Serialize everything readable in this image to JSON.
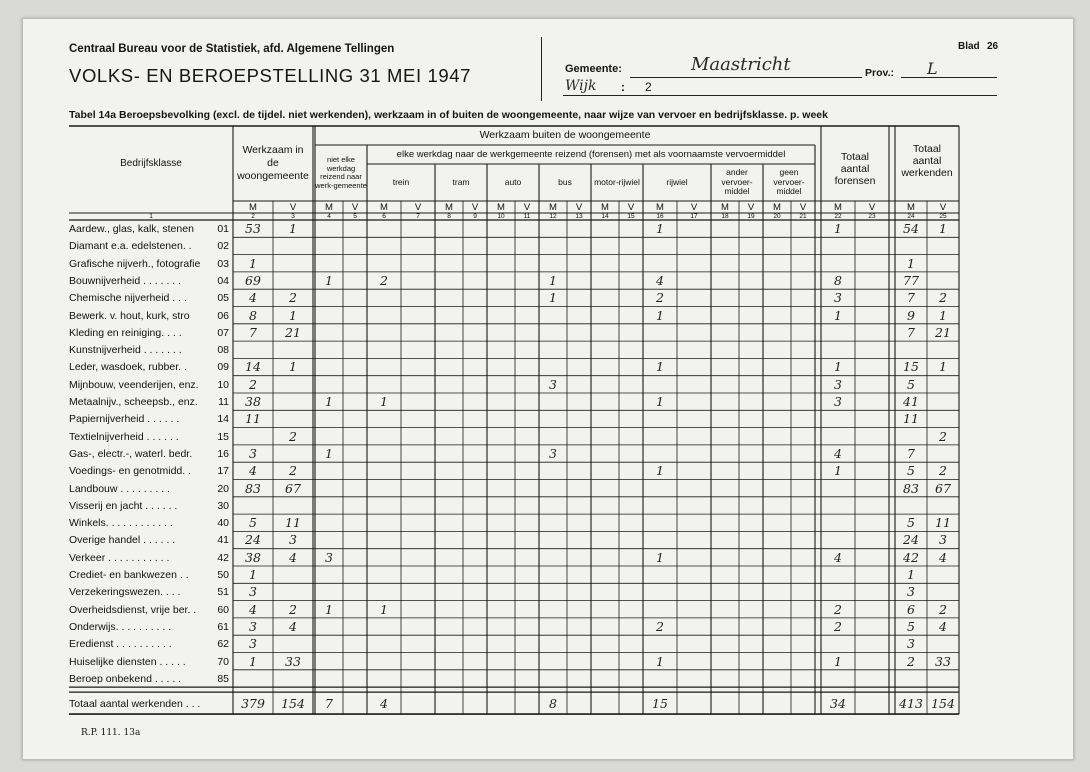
{
  "header": {
    "bureau": "Centraal Bureau voor de Statistiek, afd. Algemene Tellingen",
    "title": "VOLKS- EN BEROEPSTELLING 31 MEI 1947",
    "gemeente_label": "Gemeente:",
    "gemeente_value": "Maastricht",
    "wijk_label": "Wijk",
    "wijk_colon": ":",
    "wijk_value": "2",
    "prov_label": "Prov.:",
    "prov_value": "L",
    "blad_label": "Blad",
    "blad_value": "26"
  },
  "table_title": "Tabel 14a  Beroepsbevolking (excl. de tijdel. niet werkenden), werkzaam in of buiten de woongemeente, naar wijze van vervoer  en  bedrijfsklasse. p. week",
  "columns": {
    "bedrijfsklasse": "Bedrijfsklasse",
    "werkzaam_in": "Werkzaam in de woongemeente",
    "werkzaam_buiten": "Werkzaam buiten de woongemeente",
    "niet_elke": "niet elke werkdag reizend naar werk-gemeente",
    "elke_werkdag": "elke werkdag naar de werkgemeente reizend (forensen) met als voornaamste vervoermiddel",
    "modes": [
      "trein",
      "tram",
      "auto",
      "bus",
      "motor-rijwiel",
      "rijwiel",
      "ander vervoer-middel",
      "geen vervoer-middel"
    ],
    "totaal_forensen": "Totaal aantal forensen",
    "totaal_werkenden": "Totaal aantal werkenden",
    "m": "M",
    "v": "V",
    "numbers": [
      "1",
      "2",
      "3",
      "4",
      "5",
      "6",
      "7",
      "8",
      "9",
      "10",
      "11",
      "12",
      "13",
      "14",
      "15",
      "16",
      "17",
      "18",
      "19",
      "20",
      "21",
      "22",
      "23",
      "24",
      "25"
    ]
  },
  "rows": [
    {
      "label": "Aardew., glas, kalk, stenen",
      "code": "01",
      "values": {
        "2": "53",
        "3": "1",
        "16": "1",
        "22": "1",
        "24": "54",
        "25": "1"
      }
    },
    {
      "label": "Diamant e.a. edelstenen. .",
      "code": "02",
      "values": {}
    },
    {
      "label": "Grafische nijverh., fotografie",
      "code": "03",
      "values": {
        "2": "1",
        "24": "1"
      }
    },
    {
      "label": "Bouwnijverheid . . . . . . .",
      "code": "04",
      "values": {
        "2": "69",
        "4": "1",
        "6": "2",
        "12": "1",
        "16": "4",
        "22": "8",
        "24": "77"
      }
    },
    {
      "label": "Chemische nijverheid . . .",
      "code": "05",
      "values": {
        "2": "4",
        "3": "2",
        "12": "1",
        "16": "2",
        "22": "3",
        "24": "7",
        "25": "2"
      }
    },
    {
      "label": "Bewerk. v. hout, kurk, stro",
      "code": "06",
      "values": {
        "2": "8",
        "3": "1",
        "16": "1",
        "22": "1",
        "24": "9",
        "25": "1"
      }
    },
    {
      "label": "Kleding en reiniging. . . .",
      "code": "07",
      "values": {
        "2": "7",
        "3": "21",
        "24": "7",
        "25": "21"
      }
    },
    {
      "label": "Kunstnijverheid . . . . . . .",
      "code": "08",
      "values": {}
    },
    {
      "label": "Leder, wasdoek, rubber. .",
      "code": "09",
      "values": {
        "2": "14",
        "3": "1",
        "16": "1",
        "22": "1",
        "24": "15",
        "25": "1"
      }
    },
    {
      "label": "Mijnbouw, veenderijen, enz.",
      "code": "10",
      "values": {
        "2": "2",
        "12": "3",
        "22": "3",
        "24": "5"
      }
    },
    {
      "label": "Metaalnijv., scheepsb., enz.",
      "code": "11",
      "values": {
        "2": "38",
        "4": "1",
        "6": "1",
        "16": "1",
        "22": "3",
        "24": "41"
      }
    },
    {
      "label": "Papiernijverheid . . . . . .",
      "code": "14",
      "values": {
        "2": "11",
        "24": "11"
      }
    },
    {
      "label": "Textielnijverheid . . . . . .",
      "code": "15",
      "values": {
        "3": "2",
        "25": "2"
      }
    },
    {
      "label": "Gas-, electr.-, waterl. bedr.",
      "code": "16",
      "values": {
        "2": "3",
        "4": "1",
        "12": "3",
        "22": "4",
        "24": "7"
      }
    },
    {
      "label": "Voedings- en genotmidd. .",
      "code": "17",
      "values": {
        "2": "4",
        "3": "2",
        "16": "1",
        "22": "1",
        "24": "5",
        "25": "2"
      }
    },
    {
      "label": "Landbouw . . . . . . . . .",
      "code": "20",
      "values": {
        "2": "83",
        "3": "67",
        "24": "83",
        "25": "67"
      }
    },
    {
      "label": "Visserij en jacht . . . . . .",
      "code": "30",
      "values": {}
    },
    {
      "label": "Winkels. . . . . . . . . . . .",
      "code": "40",
      "values": {
        "2": "5",
        "3": "11",
        "24": "5",
        "25": "11"
      }
    },
    {
      "label": "Overige handel . . . . . .",
      "code": "41",
      "values": {
        "2": "24",
        "3": "3",
        "24": "24",
        "25": "3"
      }
    },
    {
      "label": "Verkeer . . . . . . . . . . .",
      "code": "42",
      "values": {
        "2": "38",
        "3": "4",
        "4": "3",
        "16": "1",
        "22": "4",
        "24": "42",
        "25": "4"
      }
    },
    {
      "label": "Crediet- en bankwezen . .",
      "code": "50",
      "values": {
        "2": "1",
        "24": "1"
      }
    },
    {
      "label": "Verzekeringswezen. . . .",
      "code": "51",
      "values": {
        "2": "3",
        "24": "3"
      }
    },
    {
      "label": "Overheidsdienst, vrije ber. .",
      "code": "60",
      "values": {
        "2": "4",
        "3": "2",
        "4": "1",
        "6": "1",
        "22": "2",
        "24": "6",
        "25": "2"
      }
    },
    {
      "label": "Onderwijs. . . . . . . . . .",
      "code": "61",
      "values": {
        "2": "3",
        "3": "4",
        "16": "2",
        "22": "2",
        "24": "5",
        "25": "4"
      }
    },
    {
      "label": "Eredienst . . . . . . . . . .",
      "code": "62",
      "values": {
        "2": "3",
        "24": "3"
      }
    },
    {
      "label": "Huiselijke diensten . . . . .",
      "code": "70",
      "values": {
        "2": "1",
        "3": "33",
        "16": "1",
        "22": "1",
        "24": "2",
        "25": "33"
      }
    },
    {
      "label": "Beroep onbekend . . . . .",
      "code": "85",
      "values": {}
    }
  ],
  "total_row": {
    "label": "Totaal aantal werkenden . . .",
    "values": {
      "2": "379",
      "3": "154",
      "4": "7",
      "6": "4",
      "12": "8",
      "16": "15",
      "22": "34",
      "24": "413",
      "25": "154"
    }
  },
  "footer_code": "R.P. 111. 13a"
}
